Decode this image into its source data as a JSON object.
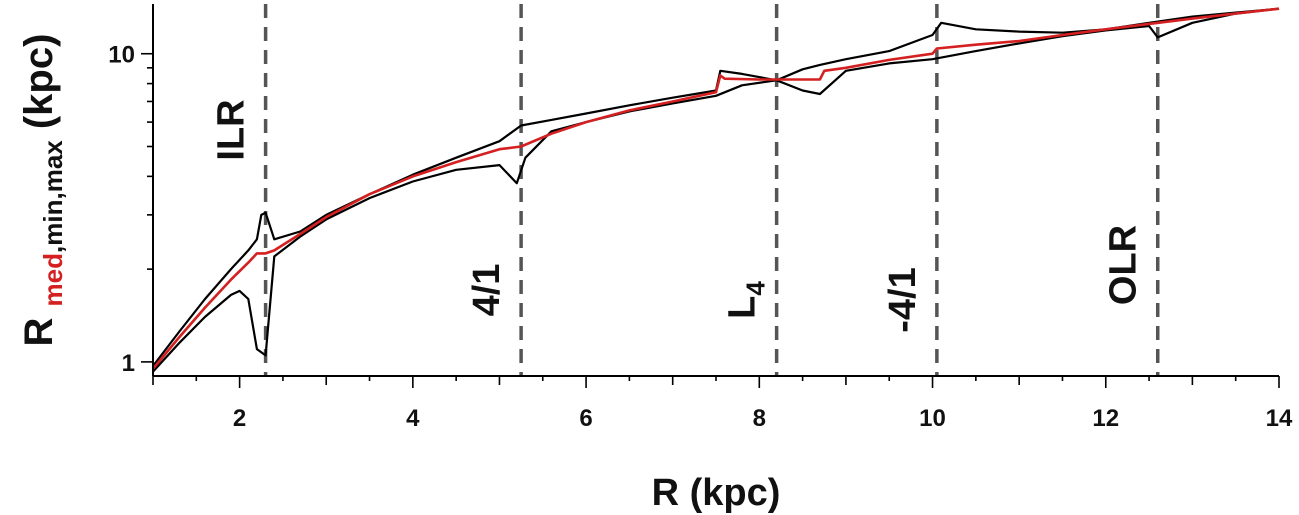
{
  "chart_data": {
    "type": "line",
    "xlabel": "R (kpc)",
    "ylabel": {
      "main": "R",
      "sub_red": "med",
      "sub_rest": ",min,max",
      "unit": " (kpc)"
    },
    "xlim": [
      1,
      14
    ],
    "ylim": [
      0.9,
      14.5
    ],
    "y_scale": "log",
    "x_ticks": [
      2,
      4,
      6,
      8,
      10,
      12,
      14
    ],
    "x_tick_labels": [
      "2",
      "4",
      "6",
      "8",
      "10",
      "12",
      "14"
    ],
    "y_ticks": [
      1,
      10
    ],
    "y_tick_labels": [
      "1",
      "10"
    ],
    "grid": false,
    "colors": {
      "median": "#d42020",
      "minmax": "#000000",
      "resonance": "#555555"
    },
    "resonances": [
      {
        "name": "ILR",
        "x": 2.3
      },
      {
        "name": "4/1",
        "x": 5.25
      },
      {
        "name": "L",
        "sub": "4",
        "x": 8.2
      },
      {
        "name": "-4/1",
        "x": 10.05
      },
      {
        "name": "OLR",
        "x": 12.6
      }
    ],
    "series": [
      {
        "role": "median",
        "x": [
          1.0,
          1.3,
          1.6,
          1.9,
          2.1,
          2.2,
          2.3,
          2.4,
          2.7,
          3.0,
          3.5,
          4.0,
          4.5,
          5.0,
          5.25,
          5.6,
          6.0,
          6.5,
          7.0,
          7.5,
          7.55,
          7.6,
          8.0,
          8.2,
          8.5,
          8.7,
          8.75,
          9.0,
          9.5,
          10.0,
          10.05,
          10.5,
          11.0,
          11.5,
          12.0,
          12.5,
          13.0,
          13.5,
          14.0
        ],
        "y": [
          0.95,
          1.2,
          1.5,
          1.85,
          2.1,
          2.25,
          2.25,
          2.3,
          2.6,
          2.95,
          3.5,
          4.0,
          4.45,
          4.9,
          5.0,
          5.5,
          6.0,
          6.55,
          7.0,
          7.5,
          8.5,
          8.3,
          8.25,
          8.25,
          8.25,
          8.25,
          8.8,
          9.0,
          9.55,
          10.0,
          10.4,
          10.7,
          11.0,
          11.5,
          12.0,
          12.5,
          13.0,
          13.5,
          14.0
        ]
      },
      {
        "role": "max",
        "x": [
          1.0,
          1.3,
          1.6,
          1.9,
          2.1,
          2.2,
          2.25,
          2.3,
          2.4,
          2.7,
          3.0,
          3.5,
          4.0,
          4.5,
          5.0,
          5.25,
          5.6,
          6.0,
          6.5,
          7.0,
          7.5,
          7.55,
          7.8,
          8.2,
          8.5,
          8.7,
          9.0,
          9.5,
          10.0,
          10.1,
          10.5,
          11.0,
          11.5,
          12.0,
          12.5,
          13.0,
          13.5,
          14.0
        ],
        "y": [
          0.97,
          1.25,
          1.6,
          2.0,
          2.3,
          2.5,
          3.0,
          3.05,
          2.5,
          2.65,
          3.0,
          3.5,
          4.05,
          4.6,
          5.2,
          5.85,
          6.1,
          6.4,
          6.8,
          7.2,
          7.6,
          8.8,
          8.6,
          8.2,
          8.9,
          9.2,
          9.6,
          10.2,
          11.5,
          12.6,
          12.0,
          11.8,
          11.7,
          12.0,
          12.6,
          13.2,
          13.6,
          14.0
        ]
      },
      {
        "role": "min",
        "x": [
          1.0,
          1.3,
          1.6,
          1.9,
          2.0,
          2.1,
          2.2,
          2.3,
          2.4,
          2.7,
          3.0,
          3.5,
          4.0,
          4.5,
          5.0,
          5.2,
          5.3,
          5.6,
          6.0,
          6.5,
          7.0,
          7.5,
          7.8,
          8.2,
          8.5,
          8.7,
          9.0,
          9.5,
          10.0,
          10.5,
          11.0,
          11.5,
          12.0,
          12.5,
          12.6,
          13.0,
          13.5,
          14.0
        ],
        "y": [
          0.93,
          1.15,
          1.4,
          1.65,
          1.7,
          1.6,
          1.1,
          1.05,
          2.2,
          2.55,
          2.9,
          3.4,
          3.85,
          4.2,
          4.35,
          3.8,
          4.6,
          5.6,
          6.0,
          6.5,
          6.9,
          7.3,
          7.9,
          8.2,
          7.6,
          7.4,
          8.8,
          9.3,
          9.6,
          10.2,
          10.8,
          11.4,
          11.9,
          12.3,
          11.3,
          12.6,
          13.5,
          14.0
        ]
      }
    ]
  }
}
